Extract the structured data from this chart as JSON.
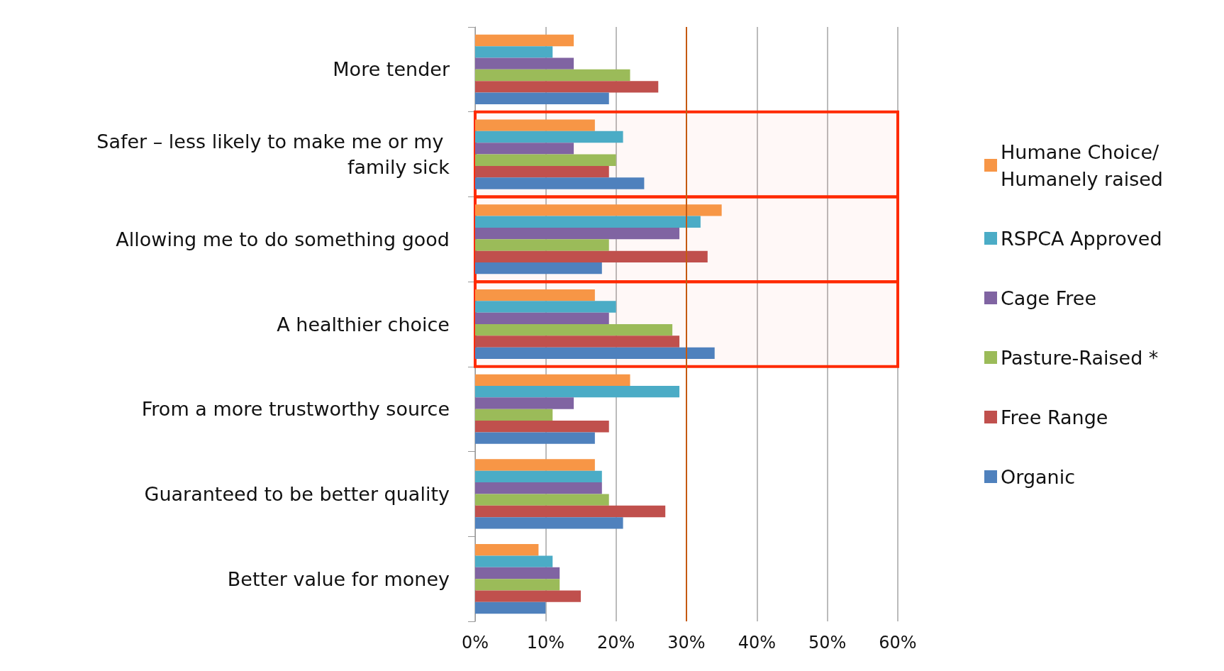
{
  "chart_data": {
    "type": "bar",
    "orientation": "horizontal",
    "categories": [
      "More tender",
      "Safer – less likely to make me or my family sick",
      "Allowing me to do something good",
      "A healthier choice",
      "From a more trustworthy source",
      "Guaranteed to be better quality",
      "Better value for money"
    ],
    "series": [
      {
        "name": "Humane Choice/ Humanely raised",
        "color": "#f79646",
        "values": [
          14,
          17,
          35,
          17,
          22,
          17,
          9
        ]
      },
      {
        "name": "RSPCA Approved",
        "color": "#4bacc6",
        "values": [
          11,
          21,
          32,
          20,
          29,
          18,
          11
        ]
      },
      {
        "name": "Cage Free",
        "color": "#8064a2",
        "values": [
          14,
          14,
          29,
          19,
          14,
          18,
          12
        ]
      },
      {
        "name": "Pasture-Raised *",
        "color": "#9bbb59",
        "values": [
          22,
          20,
          19,
          28,
          11,
          19,
          12
        ]
      },
      {
        "name": "Free Range",
        "color": "#c0504d",
        "values": [
          26,
          19,
          33,
          29,
          19,
          27,
          15
        ]
      },
      {
        "name": "Organic",
        "color": "#4f81bd",
        "values": [
          19,
          24,
          18,
          34,
          17,
          21,
          10
        ]
      }
    ],
    "xlim": [
      0,
      60
    ],
    "xticks": [
      {
        "value": 0,
        "label": "0%"
      },
      {
        "value": 10,
        "label": "10%"
      },
      {
        "value": 20,
        "label": "20%"
      },
      {
        "value": 30,
        "label": "30%"
      },
      {
        "value": 40,
        "label": "40%"
      },
      {
        "value": 50,
        "label": "50%"
      },
      {
        "value": 60,
        "label": "60%"
      }
    ],
    "grid": "x",
    "legend": "right",
    "ref_lines": [
      {
        "axis": "x",
        "value": 30,
        "color": "#c55a11"
      }
    ],
    "bands": [
      {
        "axis": "y",
        "from": "Safer – less likely to make me or my family sick",
        "to": "Safer – less likely to make me or my family sick",
        "color": "#ff2a00"
      },
      {
        "axis": "y",
        "from": "Allowing me to do something good",
        "to": "Allowing me to do something good",
        "color": "#ff2a00"
      },
      {
        "axis": "y",
        "from": "A healthier choice",
        "to": "A healthier choice",
        "color": "#ff2a00"
      }
    ]
  }
}
